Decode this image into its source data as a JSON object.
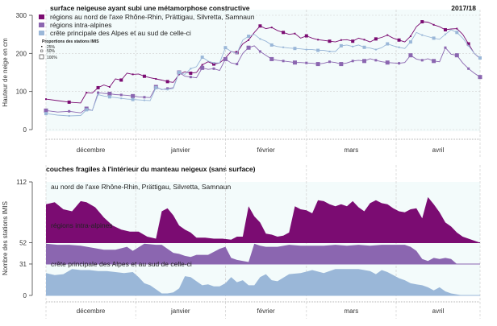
{
  "season": "2017/18",
  "colors": {
    "north": "#7b0c72",
    "intra": "#8b66b0",
    "south": "#9ab7d8",
    "panel_bg": "#f3fbfb"
  },
  "months": [
    "décembre",
    "janvier",
    "février",
    "mars",
    "avril"
  ],
  "chart_data": [
    {
      "type": "line",
      "title": "surface neigeuse ayant subi une métamorphose constructive",
      "ylabel": "Hauteur de neige en cm",
      "ylim": [
        0,
        300
      ],
      "yticks": [
        "0",
        "100",
        "200",
        "300"
      ],
      "x_unit": "day index from 1 Dec (0-150)",
      "legend": {
        "items": [
          "régions au nord de l'axe Rhône-Rhin, Prättigau, Silvretta, Samnaun",
          "régions intra-alpines",
          "crête principale des Alpes et au sud de celle-ci"
        ],
        "size_title": "Proportions des stations IMIS",
        "size_items": [
          "25%",
          "50%",
          "100%"
        ],
        "placement": "top-left"
      },
      "series": [
        {
          "name": "régions au nord de l'axe Rhône-Rhin, Prättigau, Silvretta, Samnaun",
          "x": [
            0,
            4,
            8,
            12,
            14,
            16,
            18,
            20,
            22,
            24,
            26,
            28,
            30,
            32,
            34,
            36,
            38,
            40,
            42,
            44,
            46,
            48,
            50,
            52,
            54,
            56,
            58,
            60,
            62,
            64,
            66,
            68,
            70,
            72,
            74,
            76,
            78,
            80,
            82,
            84,
            86,
            88,
            90,
            92,
            94,
            96,
            98,
            100,
            102,
            104,
            106,
            108,
            110,
            112,
            114,
            116,
            118,
            120,
            122,
            124,
            126,
            128,
            130,
            132,
            134,
            136,
            138,
            140,
            142,
            144,
            146,
            148,
            150
          ],
          "values": [
            80,
            76,
            72,
            70,
            97,
            96,
            110,
            117,
            112,
            133,
            130,
            148,
            145,
            146,
            140,
            136,
            133,
            130,
            126,
            124,
            145,
            152,
            148,
            150,
            170,
            178,
            172,
            175,
            188,
            205,
            202,
            225,
            235,
            255,
            272,
            265,
            268,
            260,
            255,
            250,
            252,
            240,
            246,
            240,
            236,
            234,
            232,
            230,
            235,
            236,
            232,
            240,
            236,
            230,
            238,
            242,
            248,
            240,
            235,
            230,
            245,
            270,
            283,
            282,
            275,
            270,
            262,
            264,
            265,
            250,
            225,
            200,
            187
          ]
        },
        {
          "name": "régions intra-alpines",
          "x": [
            0,
            4,
            8,
            12,
            14,
            16,
            18,
            20,
            22,
            24,
            26,
            28,
            30,
            32,
            34,
            36,
            38,
            40,
            42,
            44,
            46,
            48,
            50,
            52,
            54,
            56,
            58,
            60,
            62,
            64,
            66,
            68,
            70,
            72,
            74,
            76,
            78,
            80,
            82,
            84,
            86,
            88,
            90,
            92,
            94,
            96,
            98,
            100,
            102,
            104,
            106,
            108,
            110,
            112,
            114,
            116,
            118,
            120,
            122,
            124,
            126,
            128,
            130,
            132,
            134,
            136,
            138,
            140,
            142,
            144,
            146,
            148,
            150
          ],
          "values": [
            50,
            46,
            48,
            44,
            55,
            50,
            97,
            95,
            94,
            92,
            91,
            90,
            88,
            86,
            85,
            84,
            112,
            105,
            108,
            110,
            150,
            140,
            138,
            136,
            162,
            158,
            160,
            155,
            185,
            175,
            172,
            200,
            215,
            220,
            205,
            195,
            185,
            182,
            180,
            178,
            176,
            176,
            175,
            174,
            172,
            174,
            178,
            176,
            172,
            175,
            180,
            182,
            180,
            186,
            182,
            178,
            176,
            175,
            174,
            176,
            195,
            185,
            182,
            186,
            180,
            178,
            215,
            198,
            195,
            175,
            160,
            148,
            138
          ]
        },
        {
          "name": "crête principale des Alpes et au sud de celle-ci",
          "x": [
            0,
            4,
            8,
            12,
            14,
            16,
            18,
            20,
            22,
            24,
            26,
            28,
            30,
            32,
            34,
            36,
            38,
            40,
            42,
            44,
            46,
            48,
            50,
            52,
            54,
            56,
            58,
            60,
            62,
            64,
            66,
            68,
            70,
            72,
            74,
            76,
            78,
            80,
            82,
            84,
            86,
            88,
            90,
            92,
            94,
            96,
            98,
            100,
            102,
            104,
            106,
            108,
            110,
            112,
            114,
            116,
            118,
            120,
            122,
            124,
            126,
            128,
            130,
            132,
            134,
            136,
            138,
            140,
            142,
            144,
            146,
            148,
            150
          ],
          "values": [
            42,
            38,
            36,
            37,
            52,
            50,
            92,
            88,
            86,
            84,
            82,
            80,
            79,
            78,
            77,
            76,
            110,
            106,
            105,
            108,
            150,
            145,
            160,
            165,
            190,
            180,
            175,
            175,
            215,
            205,
            200,
            235,
            245,
            250,
            238,
            232,
            222,
            218,
            216,
            214,
            213,
            212,
            210,
            210,
            208,
            208,
            205,
            205,
            220,
            222,
            218,
            222,
            216,
            214,
            210,
            215,
            225,
            220,
            216,
            213,
            230,
            255,
            248,
            244,
            240,
            237,
            250,
            262,
            255,
            240,
            220,
            200,
            188
          ]
        }
      ]
    },
    {
      "type": "area",
      "title": "couches fragiles à l'intérieur du manteau neigeux (sans surface)",
      "ylabel": "Nombre des stations IMIS",
      "yticks": [
        "0",
        "31",
        "52",
        "112"
      ],
      "x_unit": "day index from 1 Dec (0-150)",
      "series": [
        {
          "name": "au nord de l'axe Rhône-Rhin, Prättigau, Silvretta, Samnaun",
          "baseline": 52,
          "max_band": 60,
          "x": [
            0,
            3,
            6,
            9,
            12,
            14,
            17,
            20,
            23,
            26,
            29,
            32,
            35,
            38,
            40,
            42,
            44,
            46,
            48,
            50,
            52,
            55,
            58,
            61,
            64,
            66,
            68,
            70,
            72,
            74,
            76,
            78,
            80,
            82,
            84,
            86,
            88,
            90,
            92,
            94,
            96,
            98,
            100,
            102,
            104,
            106,
            108,
            110,
            112,
            114,
            116,
            118,
            120,
            122,
            124,
            126,
            128,
            130,
            132,
            134,
            136,
            138,
            140,
            142,
            144,
            150
          ],
          "values": [
            38,
            40,
            33,
            31,
            41,
            40,
            35,
            25,
            17,
            13,
            11,
            11,
            6,
            4,
            31,
            34,
            27,
            17,
            13,
            10,
            5,
            5,
            4,
            4,
            3,
            6,
            6,
            36,
            26,
            20,
            9,
            8,
            6,
            7,
            10,
            36,
            33,
            32,
            29,
            42,
            41,
            38,
            36,
            38,
            36,
            41,
            35,
            31,
            39,
            42,
            39,
            38,
            34,
            31,
            30,
            33,
            34,
            24,
            45,
            38,
            30,
            20,
            16,
            10,
            6,
            0
          ]
        },
        {
          "name": "régions intra-alpines",
          "baseline": 31,
          "max_band": 21,
          "x": [
            0,
            4,
            8,
            12,
            16,
            20,
            24,
            28,
            30,
            34,
            38,
            40,
            42,
            44,
            46,
            48,
            50,
            52,
            56,
            60,
            62,
            64,
            66,
            70,
            72,
            74,
            76,
            80,
            84,
            88,
            92,
            96,
            100,
            104,
            108,
            112,
            116,
            120,
            124,
            126,
            128,
            130,
            132,
            134,
            136,
            138,
            140,
            142,
            150
          ],
          "values": [
            20,
            19,
            19,
            18,
            16,
            14,
            14,
            17,
            13,
            20,
            19,
            19,
            15,
            11,
            10,
            8,
            7,
            9,
            9,
            15,
            17,
            6,
            4,
            2,
            20,
            18,
            17,
            17,
            19,
            18,
            18,
            18,
            19,
            18,
            19,
            18,
            19,
            19,
            19,
            17,
            13,
            5,
            3,
            6,
            5,
            6,
            5,
            0,
            0
          ]
        },
        {
          "name": "crête principale des Alpes et au sud de celle-ci",
          "baseline": 0,
          "max_band": 31,
          "x": [
            0,
            3,
            6,
            9,
            12,
            15,
            18,
            21,
            24,
            27,
            30,
            32,
            34,
            36,
            38,
            40,
            42,
            44,
            46,
            48,
            50,
            52,
            54,
            56,
            58,
            60,
            62,
            64,
            66,
            68,
            70,
            72,
            74,
            76,
            78,
            80,
            84,
            88,
            92,
            96,
            100,
            104,
            108,
            112,
            114,
            116,
            118,
            120,
            122,
            124,
            126,
            128,
            130,
            132,
            134,
            136,
            138,
            140,
            142,
            144,
            146,
            150
          ],
          "values": [
            22,
            20,
            21,
            26,
            25,
            25,
            24,
            24,
            23,
            22,
            23,
            18,
            12,
            10,
            6,
            2,
            2,
            3,
            7,
            19,
            18,
            14,
            10,
            11,
            9,
            9,
            12,
            18,
            13,
            15,
            10,
            10,
            18,
            21,
            15,
            14,
            21,
            22,
            25,
            22,
            26,
            26,
            26,
            24,
            21,
            25,
            23,
            20,
            17,
            15,
            12,
            11,
            10,
            8,
            5,
            8,
            4,
            2,
            1,
            0,
            0,
            0
          ]
        }
      ]
    }
  ]
}
